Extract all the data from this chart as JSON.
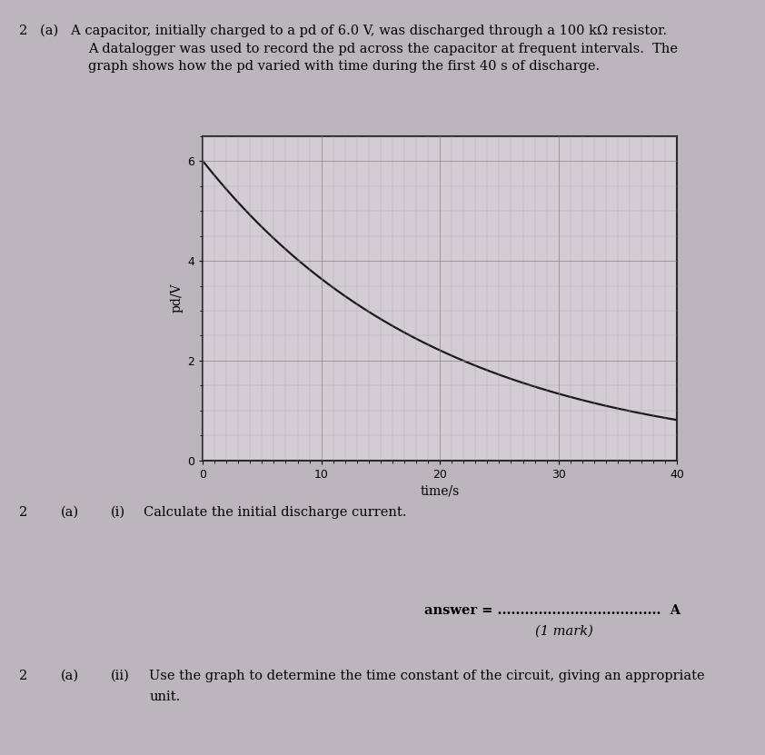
{
  "page_bg_color": "#bdb5bd",
  "graph_bg_color": "#d4ccd4",
  "grid_color_major": "#888080",
  "grid_color_minor": "#aaa0aa",
  "curve_color": "#1a1a1a",
  "curve_linewidth": 1.6,
  "V0": 6.0,
  "RC": 20.0,
  "t_max": 40,
  "xlim": [
    0,
    40
  ],
  "ylim": [
    0,
    6.5
  ],
  "yticks": [
    0,
    2,
    4,
    6
  ],
  "xticks": [
    0,
    10,
    20,
    30,
    40
  ],
  "xlabel": "time/s",
  "ylabel": "pd/V",
  "xlabel_fontsize": 10,
  "ylabel_fontsize": 10,
  "tick_fontsize": 9,
  "body_fontsize": 10.5
}
